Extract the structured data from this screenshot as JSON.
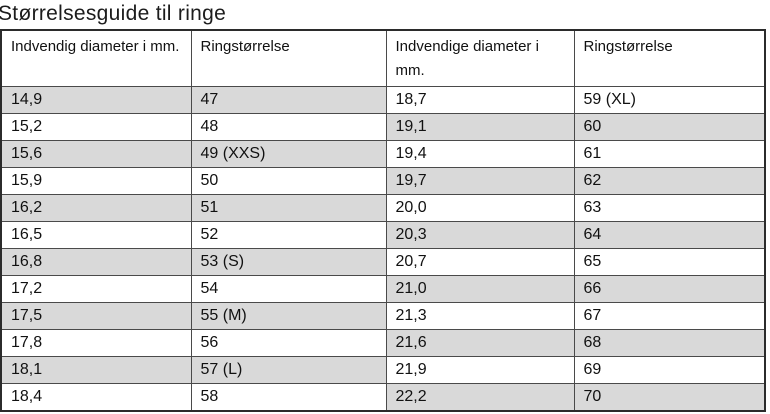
{
  "page": {
    "title": "Størrelsesguide til ringe"
  },
  "colors": {
    "row_shade": "#d9d9d9",
    "grid_border": "#4a4a4a",
    "outer_border": "#2b2b2b",
    "text": "#111111"
  },
  "table": {
    "headers": [
      "Indvendig diameter i mm.",
      "Ringstørrelse",
      "Indvendige diameter i mm.",
      "Ringstørrelse"
    ],
    "rows": [
      [
        "14,9",
        "47",
        "18,7",
        "59 (XL)"
      ],
      [
        "15,2",
        "48",
        "19,1",
        "60"
      ],
      [
        "15,6",
        "49 (XXS)",
        "19,4",
        "61"
      ],
      [
        "15,9",
        "50",
        "19,7",
        "62"
      ],
      [
        "16,2",
        "51",
        "20,0",
        "63"
      ],
      [
        "16,5",
        "52",
        "20,3",
        "64"
      ],
      [
        "16,8",
        "53 (S)",
        "20,7",
        "65"
      ],
      [
        "17,2",
        "54",
        "21,0",
        "66"
      ],
      [
        "17,5",
        "55 (M)",
        "21,3",
        "67"
      ],
      [
        "17,8",
        "56",
        "21,6",
        "68"
      ],
      [
        "18,1",
        "57 (L)",
        "21,9",
        "69"
      ],
      [
        "18,4",
        "58",
        "22,2",
        "70"
      ]
    ],
    "shading": {
      "left_pair_gray_rows": "even (0-based 0,2,4,6,8,10)",
      "right_pair_gray_rows": "odd (0-based 1,3,5,7,9,11)"
    }
  }
}
